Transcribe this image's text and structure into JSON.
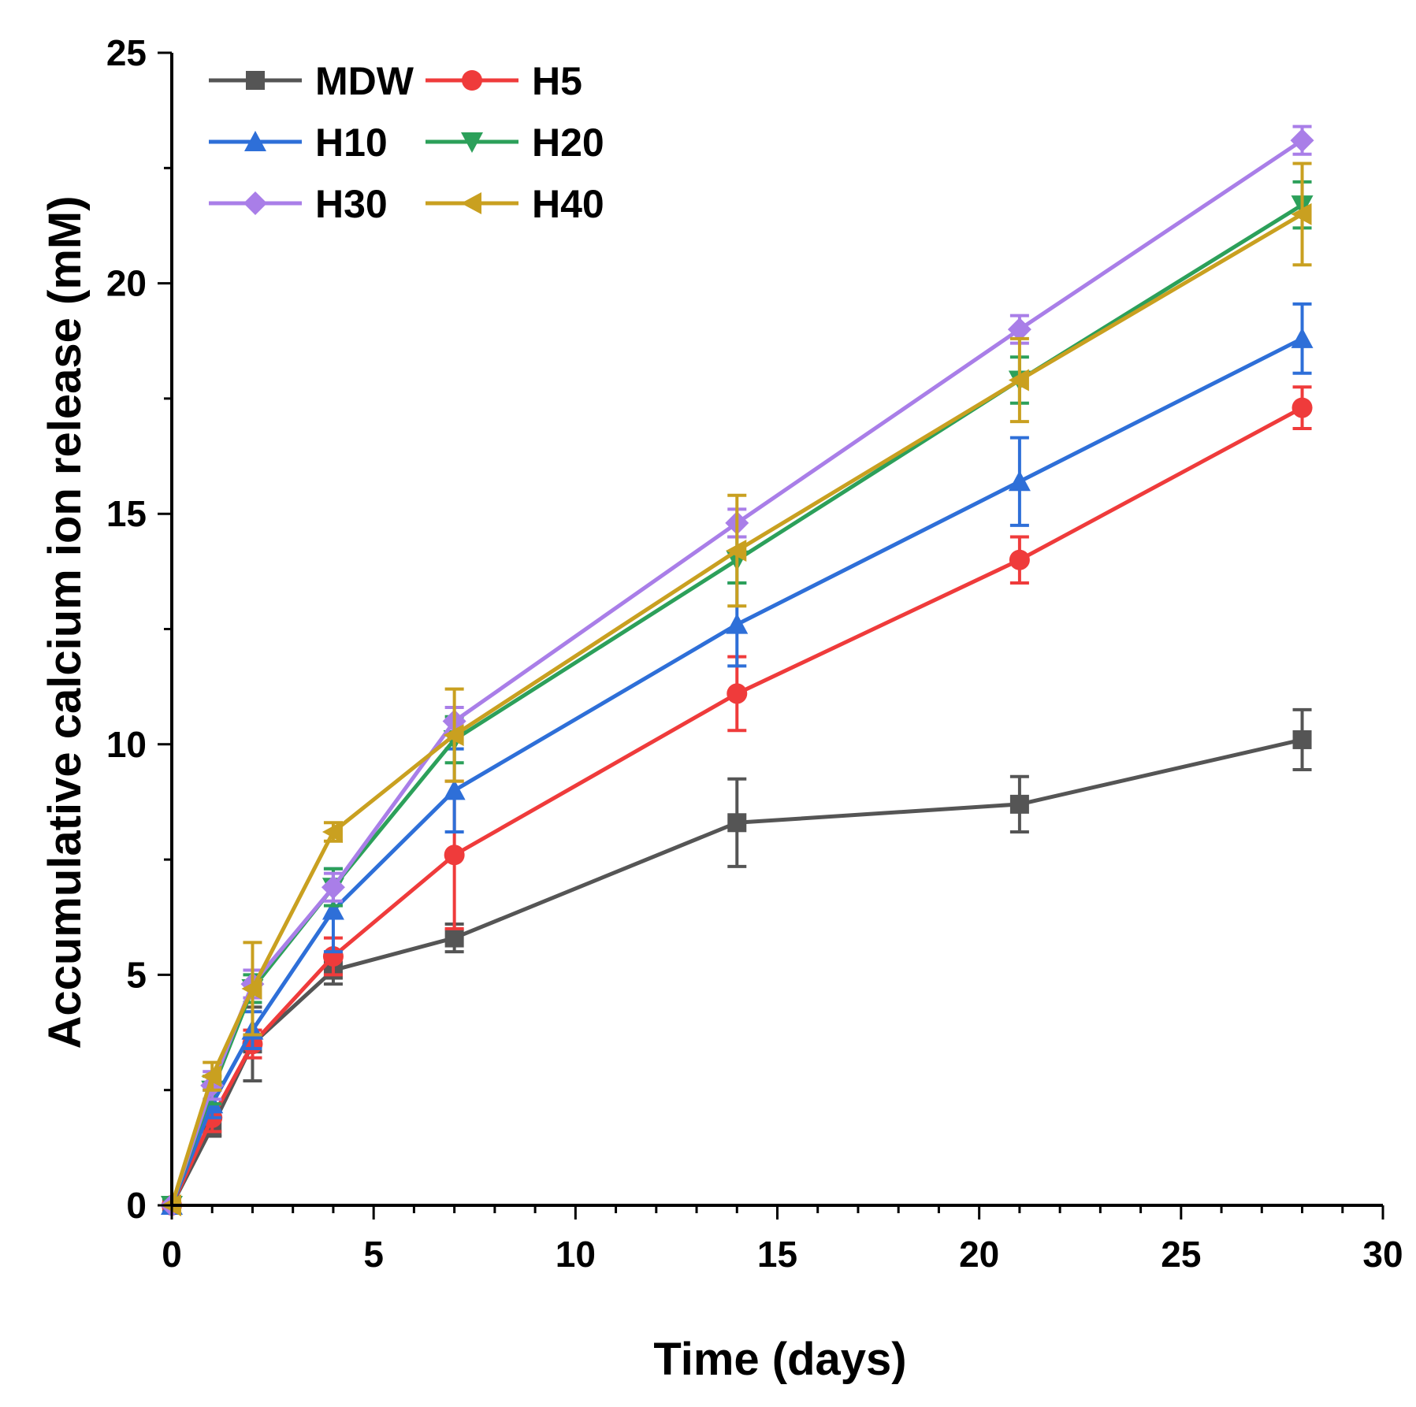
{
  "chart_data": {
    "type": "line",
    "title": "",
    "xlabel": "Time (days)",
    "ylabel": "Accumulative calcium ion release (mM)",
    "xlim": [
      0,
      30
    ],
    "ylim": [
      0,
      25
    ],
    "xticks": [
      0,
      5,
      10,
      15,
      20,
      25,
      30
    ],
    "yticks": [
      0,
      5,
      10,
      15,
      20,
      25
    ],
    "legend_position": "top-left",
    "x": [
      0,
      1,
      2,
      4,
      7,
      14,
      21,
      28
    ],
    "series": [
      {
        "name": "MDW",
        "color": "#555555",
        "marker": "square",
        "values": [
          0,
          1.7,
          3.5,
          5.1,
          5.8,
          8.3,
          8.7,
          10.1
        ],
        "errors": [
          0,
          0.2,
          0.8,
          0.3,
          0.3,
          0.95,
          0.6,
          0.65
        ]
      },
      {
        "name": "H5",
        "color": "#ef3b3b",
        "marker": "circle",
        "values": [
          0,
          1.9,
          3.5,
          5.4,
          7.6,
          11.1,
          14.0,
          17.3
        ],
        "errors": [
          0,
          0.3,
          0.3,
          0.4,
          1.6,
          0.8,
          0.5,
          0.45
        ]
      },
      {
        "name": "H10",
        "color": "#2e6fd8",
        "marker": "triangle-up",
        "values": [
          0,
          2.2,
          3.8,
          6.4,
          9.0,
          12.6,
          15.7,
          18.8
        ],
        "errors": [
          0,
          0.3,
          0.4,
          0.9,
          0.9,
          0.9,
          0.95,
          0.75
        ]
      },
      {
        "name": "H20",
        "color": "#2ca05a",
        "marker": "triangle-down",
        "values": [
          0,
          2.5,
          4.7,
          6.9,
          10.1,
          14.0,
          17.9,
          21.7
        ],
        "errors": [
          0,
          0.3,
          0.3,
          0.4,
          0.5,
          0.5,
          0.5,
          0.5
        ]
      },
      {
        "name": "H30",
        "color": "#a97ee8",
        "marker": "diamond",
        "values": [
          0,
          2.6,
          4.8,
          6.9,
          10.5,
          14.8,
          19.0,
          23.1
        ],
        "errors": [
          0,
          0.3,
          0.3,
          0.3,
          0.3,
          0.3,
          0.3,
          0.3
        ]
      },
      {
        "name": "H40",
        "color": "#c9a020",
        "marker": "triangle-left",
        "values": [
          0,
          2.8,
          4.7,
          8.1,
          10.2,
          14.2,
          17.9,
          21.5
        ],
        "errors": [
          0,
          0.3,
          1.0,
          0.2,
          1.0,
          1.2,
          0.9,
          1.1
        ]
      }
    ]
  }
}
